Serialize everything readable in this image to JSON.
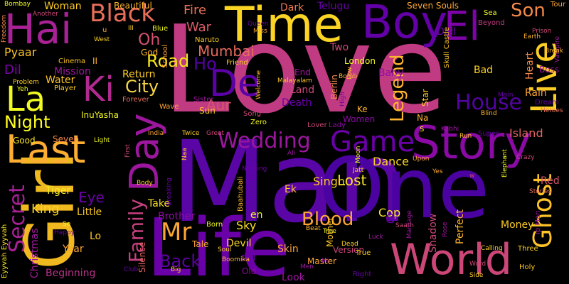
{
  "words": [
    {
      "text": "Love",
      "color": "#c13b82"
    },
    {
      "text": "Man",
      "color": "#5a06a6"
    },
    {
      "text": "One",
      "color": "#4a02a0"
    },
    {
      "text": "Life",
      "color": "#6a00a8"
    },
    {
      "text": "Girl",
      "color": "#f0b91f"
    },
    {
      "text": "Time",
      "color": "#fbd424"
    },
    {
      "text": "Boy",
      "color": "#6300a7"
    },
    {
      "text": "Story",
      "color": "#8b0aa5"
    },
    {
      "text": "World",
      "color": "#cc4778"
    },
    {
      "text": "Hai",
      "color": "#a82296"
    },
    {
      "text": "El",
      "color": "#7e03a8"
    },
    {
      "text": "Day",
      "color": "#9c179e"
    },
    {
      "text": "Last",
      "color": "#fdae32"
    },
    {
      "text": "Ki",
      "color": "#b12a90"
    },
    {
      "text": "La",
      "color": "#f0f921"
    },
    {
      "text": "Live",
      "color": "#fcce25"
    },
    {
      "text": "De",
      "color": "#5c01a6"
    },
    {
      "text": "Ghost",
      "color": "#fdc328"
    },
    {
      "text": "Black",
      "color": "#e76f5a"
    },
    {
      "text": "Game",
      "color": "#6a00a8"
    },
    {
      "text": "Son",
      "color": "#f48849"
    },
    {
      "text": "Secret",
      "color": "#a72197"
    },
    {
      "text": "House",
      "color": "#5402a3"
    },
    {
      "text": "Wedding",
      "color": "#9b179e"
    },
    {
      "text": "Mr",
      "color": "#fca636"
    },
    {
      "text": "Family",
      "color": "#c5407e"
    },
    {
      "text": "Legend",
      "color": "#fdb42f"
    },
    {
      "text": "Blood",
      "color": "#fba238"
    },
    {
      "text": "Night",
      "color": "#fefe22"
    },
    {
      "text": "Mumbai",
      "color": "#e56b5d"
    },
    {
      "text": "Back",
      "color": "#5d01a6"
    },
    {
      "text": "Lost",
      "color": "#f7e225"
    },
    {
      "text": "Aur",
      "color": "#d8576b"
    },
    {
      "text": "City",
      "color": "#f6d543"
    },
    {
      "text": "Road",
      "color": "#f4e61e"
    },
    {
      "text": "Ho",
      "color": "#5601a4"
    },
    {
      "text": "Oh",
      "color": "#d5536f"
    },
    {
      "text": "Fire",
      "color": "#e97158"
    },
    {
      "text": "War",
      "color": "#db5c68"
    },
    {
      "text": "Dil",
      "color": "#7e03a8"
    },
    {
      "text": "Pyaar",
      "color": "#fdc527"
    },
    {
      "text": "King",
      "color": "#fbd424"
    },
    {
      "text": "Eye",
      "color": "#6a00a8"
    },
    {
      "text": "Woman",
      "color": "#fdca26"
    },
    {
      "text": "Christmas",
      "color": "#a01a9c"
    },
    {
      "text": "Dance",
      "color": "#fbd524"
    },
    {
      "text": "Island",
      "color": "#e16462"
    },
    {
      "text": "Singh",
      "color": "#fdc926"
    },
    {
      "text": "Cop",
      "color": "#fde725"
    },
    {
      "text": "Sky",
      "color": "#f9dd25"
    },
    {
      "text": "Skin",
      "color": "#fca338"
    },
    {
      "text": "Devil",
      "color": "#fbd524"
    },
    {
      "text": "Brother",
      "color": "#8f0da4"
    },
    {
      "text": "Tiger",
      "color": "#f5eb27"
    },
    {
      "text": "Eyyvah Eyyvah",
      "color": "#f7e225"
    },
    {
      "text": "Two",
      "color": "#cc4778"
    },
    {
      "text": "London",
      "color": "#f0f921"
    },
    {
      "text": "Baby",
      "color": "#8e0ca4"
    },
    {
      "text": "Mission",
      "color": "#9c179e"
    },
    {
      "text": "Return",
      "color": "#fcce25"
    },
    {
      "text": "Water",
      "color": "#fdc527"
    },
    {
      "text": "Little",
      "color": "#fdca26"
    },
    {
      "text": "Year",
      "color": "#fca636"
    },
    {
      "text": "Beginning",
      "color": "#b83289"
    },
    {
      "text": "Take",
      "color": "#f7e225"
    },
    {
      "text": "Money",
      "color": "#fcce25"
    },
    {
      "text": "Version",
      "color": "#c8437b"
    },
    {
      "text": "Shadow",
      "color": "#cc4778"
    },
    {
      "text": "Perfect",
      "color": "#fdb42f"
    },
    {
      "text": "Red",
      "color": "#d6556d"
    },
    {
      "text": "Rain",
      "color": "#fca338"
    },
    {
      "text": "Heart",
      "color": "#f48849"
    },
    {
      "text": "Boss",
      "color": "#9a169f"
    },
    {
      "text": "Bad",
      "color": "#fcce25"
    },
    {
      "text": "Mother",
      "color": "#fdc527"
    },
    {
      "text": "Master",
      "color": "#fca636"
    },
    {
      "text": "Look",
      "color": "#9c179e"
    },
    {
      "text": "Old",
      "color": "#8b0aa5"
    },
    {
      "text": "del",
      "color": "#6a00a8"
    },
    {
      "text": "en",
      "color": "#f0f921"
    },
    {
      "text": "Lo",
      "color": "#fdc527"
    },
    {
      "text": "O",
      "color": "#6a00a8"
    },
    {
      "text": "Ek",
      "color": "#fdc527"
    },
    {
      "text": "Na",
      "color": "#fdb42f"
    },
    {
      "text": "Ke",
      "color": "#fdb42f"
    },
    {
      "text": "End",
      "color": "#9c179e"
    },
    {
      "text": "Land",
      "color": "#cc4778"
    },
    {
      "text": "Death",
      "color": "#6a00a8"
    },
    {
      "text": "Star",
      "color": "#fcce25"
    },
    {
      "text": "Sun",
      "color": "#fdc527"
    },
    {
      "text": "II",
      "color": "#fdb42f"
    },
    {
      "text": "God",
      "color": "#fdb42f"
    },
    {
      "text": "InuYasha",
      "color": "#f0f921"
    },
    {
      "text": "Silence",
      "color": "#e16462"
    },
    {
      "text": "Tale",
      "color": "#fca636"
    },
    {
      "text": "Dream",
      "color": "#6a00a8"
    },
    {
      "text": "Tour",
      "color": "#fca636"
    },
    {
      "text": "Dark",
      "color": "#ed7953"
    },
    {
      "text": "Telugu",
      "color": "#6a00a8"
    },
    {
      "text": "Seven Souls",
      "color": "#fca636"
    },
    {
      "text": "Beautiful",
      "color": "#fdb42f"
    },
    {
      "text": "Naruto",
      "color": "#fcce25"
    },
    {
      "text": "Blue",
      "color": "#f0f921"
    },
    {
      "text": "School",
      "color": "#fca636"
    },
    {
      "text": "Cinema",
      "color": "#fdc527"
    },
    {
      "text": "Player",
      "color": "#fcce25"
    },
    {
      "text": "Forever",
      "color": "#e97158"
    },
    {
      "text": "Wave",
      "color": "#fca636"
    },
    {
      "text": "Seven",
      "color": "#f48849"
    },
    {
      "text": "Good",
      "color": "#f7e225"
    },
    {
      "text": "Zero",
      "color": "#f0f921"
    },
    {
      "text": "Song",
      "color": "#cc4778"
    },
    {
      "text": "Sister",
      "color": "#9c179e"
    },
    {
      "text": "Women",
      "color": "#8b0aa5"
    },
    {
      "text": "Friend",
      "color": "#fcce25"
    },
    {
      "text": "Malayalam",
      "color": "#fdc527"
    },
    {
      "text": "Berlin",
      "color": "#f48849"
    },
    {
      "text": "Bomb",
      "color": "#fdb42f"
    },
    {
      "text": "Lover",
      "color": "#cc4778"
    },
    {
      "text": "Lady",
      "color": "#8b0aa5"
    },
    {
      "text": "Sea",
      "color": "#f0f921"
    },
    {
      "text": "Beyond",
      "color": "#c13b82"
    },
    {
      "text": "Doll",
      "color": "#6a00a8"
    },
    {
      "text": "Skull Castle",
      "color": "#fdc527"
    },
    {
      "text": "Baahubali",
      "color": "#fdb42f"
    },
    {
      "text": "Nothing",
      "color": "#6a00a8"
    },
    {
      "text": "Born",
      "color": "#f0f921"
    },
    {
      "text": "Tree",
      "color": "#f0f921"
    },
    {
      "text": "Beat",
      "color": "#fdb42f"
    },
    {
      "text": "Dead",
      "color": "#fcce25"
    },
    {
      "text": "True",
      "color": "#fdc527"
    },
    {
      "text": "Right",
      "color": "#6a00a8"
    },
    {
      "text": "Luck",
      "color": "#9c179e"
    },
    {
      "text": "Saath",
      "color": "#cc4778"
    },
    {
      "text": "Marriage",
      "color": "#9c179e"
    },
    {
      "text": "Rose",
      "color": "#9c179e"
    },
    {
      "text": "Word",
      "color": "#cc4778"
    },
    {
      "text": "Side",
      "color": "#fdc527"
    },
    {
      "text": "Calling",
      "color": "#fcce25"
    },
    {
      "text": "Three",
      "color": "#fcce25"
    },
    {
      "text": "Holy",
      "color": "#fdc527"
    },
    {
      "text": "Ip Man",
      "color": "#9c179e"
    },
    {
      "text": "Elephant",
      "color": "#f0f921"
    },
    {
      "text": "Stories",
      "color": "#e97158"
    },
    {
      "text": "Crazy",
      "color": "#cc4778"
    },
    {
      "text": "Super",
      "color": "#6a00a8"
    },
    {
      "text": "Blind",
      "color": "#fdb42f"
    },
    {
      "text": "Run",
      "color": "#fdc527"
    },
    {
      "text": "Kabhi",
      "color": "#9c179e"
    },
    {
      "text": "Jatt",
      "color": "#fcce25"
    },
    {
      "text": "Moon",
      "color": "#f0f921"
    },
    {
      "text": "Upon",
      "color": "#fca636"
    },
    {
      "text": "Yes",
      "color": "#fca636"
    },
    {
      "text": "Ali",
      "color": "#9c179e"
    },
    {
      "text": "Men",
      "color": "#9c179e"
    },
    {
      "text": "Mi",
      "color": "#9c179e"
    },
    {
      "text": "Soul",
      "color": "#fcce25"
    },
    {
      "text": "Boomika",
      "color": "#fdb42f"
    },
    {
      "text": "Big",
      "color": "#fcce25"
    },
    {
      "text": "Club",
      "color": "#6a00a8"
    },
    {
      "text": "Happy",
      "color": "#6a00a8"
    },
    {
      "text": "Se",
      "color": "#f0f921"
    },
    {
      "text": "Problem",
      "color": "#fcce25"
    },
    {
      "text": "Yeh",
      "color": "#f0f921"
    },
    {
      "text": "Freedom",
      "color": "#f48849"
    },
    {
      "text": "Bombay",
      "color": "#f0f921"
    },
    {
      "text": "Another",
      "color": "#cc4778"
    },
    {
      "text": "West",
      "color": "#fcce25"
    },
    {
      "text": "III",
      "color": "#fcce25"
    },
    {
      "text": "Queen",
      "color": "#6a00a8"
    },
    {
      "text": "Miss",
      "color": "#fca636"
    },
    {
      "text": "Welcome",
      "color": "#fdb42f"
    },
    {
      "text": "High",
      "color": "#6a00a8"
    },
    {
      "text": "Low",
      "color": "#fdc527"
    },
    {
      "text": "Breaking",
      "color": "#6a00a8"
    },
    {
      "text": "Body",
      "color": "#fcce25"
    },
    {
      "text": "First",
      "color": "#cc4778"
    },
    {
      "text": "India",
      "color": "#fca636"
    },
    {
      "text": "Twice",
      "color": "#fcce25"
    },
    {
      "text": "Great",
      "color": "#cc4778"
    },
    {
      "text": "Naa",
      "color": "#fdc527"
    },
    {
      "text": "Light",
      "color": "#f0f921"
    },
    {
      "text": "Heroes",
      "color": "#e97158"
    },
    {
      "text": "Earth",
      "color": "#fdb42f"
    },
    {
      "text": "Prison",
      "color": "#cc4778"
    },
    {
      "text": "Vampire",
      "color": "#9c179e"
    },
    {
      "text": "Main",
      "color": "#6a00a8"
    },
    {
      "text": "Break",
      "color": "#fdb42f"
    },
    {
      "text": "S",
      "color": "#f0f921"
    },
    {
      "text": "u",
      "color": "#fca636"
    },
    {
      "text": "w",
      "color": "#cc4778"
    }
  ]
}
